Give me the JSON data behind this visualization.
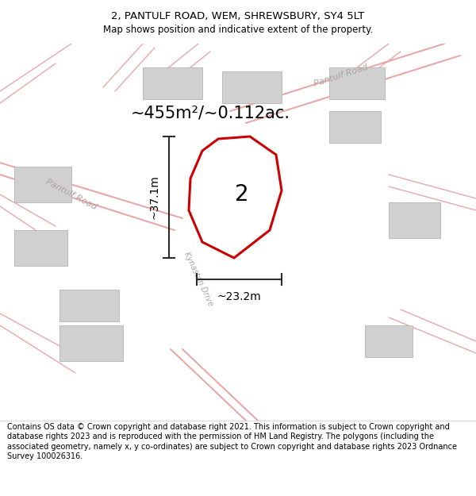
{
  "title_line1": "2, PANTULF ROAD, WEM, SHREWSBURY, SY4 5LT",
  "title_line2": "Map shows position and indicative extent of the property.",
  "footer_text": "Contains OS data © Crown copyright and database right 2021. This information is subject to Crown copyright and database rights 2023 and is reproduced with the permission of HM Land Registry. The polygons (including the associated geometry, namely x, y co-ordinates) are subject to Crown copyright and database rights 2023 Ordnance Survey 100026316.",
  "area_label": "~455m²/~0.112ac.",
  "number_label": "2",
  "width_label": "~23.2m",
  "height_label": "~37.1m",
  "road_label_pantulf_top": "Pantulf Road",
  "road_label_pantulf_left": "Pantulf Road",
  "road_label_kynaston": "Kynaston Drive",
  "map_bg_color": "#f7f2f2",
  "property_fill": "#ffffff",
  "property_edge": "#cc0000",
  "building_fill": "#d0d0d0",
  "building_edge": "#bbbbbb",
  "road_line_color": "#e8a8a8",
  "dim_line_color": "#2a2a2a",
  "title_fontsize": 9.5,
  "subtitle_fontsize": 8.5,
  "footer_fontsize": 7.0,
  "area_fontsize": 15,
  "number_fontsize": 20,
  "dim_fontsize": 10,
  "road_fontsize": 8,
  "road_label_color": "#b0a0a0"
}
